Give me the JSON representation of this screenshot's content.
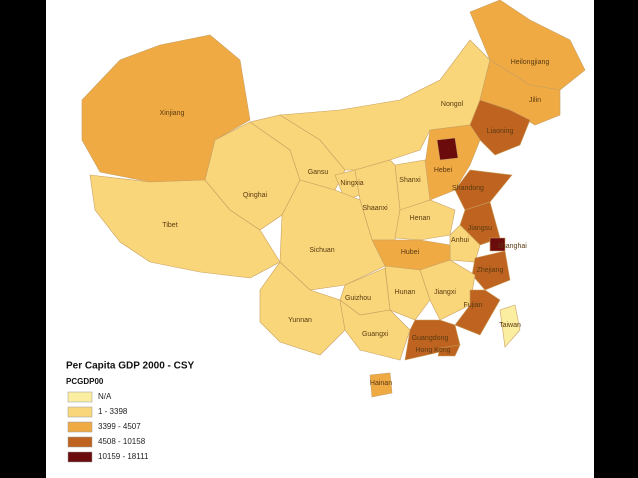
{
  "map": {
    "legend": {
      "title": "Per Capita GDP 2000 - CSY",
      "field": "PCGDP00",
      "items": [
        {
          "label": "N/A",
          "color": "#fbeea0"
        },
        {
          "label": "1 - 3398",
          "color": "#f9d67a"
        },
        {
          "label": "3399 - 4507",
          "color": "#f0aa44"
        },
        {
          "label": "4508 - 10158",
          "color": "#bf6420"
        },
        {
          "label": "10159 - 18111",
          "color": "#6b0b0b"
        }
      ]
    },
    "regions": [
      {
        "name": "Xinjiang",
        "color": "#f0aa44"
      },
      {
        "name": "Tibet",
        "color": "#f9d67a"
      },
      {
        "name": "Qinghai",
        "color": "#f9d67a"
      },
      {
        "name": "Gansu",
        "color": "#f9d67a"
      },
      {
        "name": "Nongol",
        "color": "#f9d67a"
      },
      {
        "name": "Heilongjiang",
        "color": "#f0aa44"
      },
      {
        "name": "Jilin",
        "color": "#f0aa44"
      },
      {
        "name": "Liaoning",
        "color": "#bf6420"
      },
      {
        "name": "Hebei",
        "color": "#f0aa44"
      },
      {
        "color": "#6b0b0b"
      },
      {
        "name": "Shandong",
        "color": "#bf6420"
      },
      {
        "name": "Shanxi",
        "color": "#f9d67a"
      },
      {
        "name": "Ningxia",
        "color": "#f9d67a"
      },
      {
        "name": "Shaanxi",
        "color": "#f9d67a"
      },
      {
        "name": "Henan",
        "color": "#f9d67a"
      },
      {
        "name": "Jiangsu",
        "color": "#bf6420"
      },
      {
        "name": "Shanghai",
        "color": "#6b0b0b"
      },
      {
        "name": "Anhui",
        "color": "#f9d67a"
      },
      {
        "name": "Hubei",
        "color": "#f0aa44"
      },
      {
        "name": "Zhejiang",
        "color": "#bf6420"
      },
      {
        "name": "Sichuan",
        "color": "#f9d67a"
      },
      {
        "name": "Hunan",
        "color": "#f9d67a"
      },
      {
        "name": "Jiangxi",
        "color": "#f9d67a"
      },
      {
        "name": "Fujian",
        "color": "#bf6420"
      },
      {
        "name": "Guizhou",
        "color": "#f9d67a"
      },
      {
        "name": "Yunnan",
        "color": "#f9d67a"
      },
      {
        "name": "Guangxi",
        "color": "#f9d67a"
      },
      {
        "name": "Guangdong",
        "color": "#bf6420"
      },
      {
        "name": "Hong Kong",
        "color": "#bf6420"
      },
      {
        "name": "Hainan",
        "color": "#f0aa44"
      },
      {
        "name": "Taiwan",
        "color": "#fbeea0"
      }
    ]
  }
}
